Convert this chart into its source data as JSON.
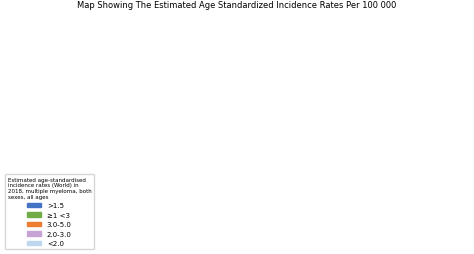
{
  "title": "Map Showing The Estimated Age Standardized Incidence Rates Per 100 000",
  "legend_title": "Estimated age-standardised\nincidence rates (World) in\n2018, multiple myeloma, both\nsexes, all ages",
  "legend_entries": [
    {
      "label": ">1.5",
      "color": "#4472C4"
    },
    {
      "label": "≥1 <3",
      "color": "#70AD47"
    },
    {
      "label": "3.0-5.0",
      "color": "#ED7D31"
    },
    {
      "label": "2.0-3.0",
      "color": "#C5A3D4"
    },
    {
      "label": "<2.0",
      "color": "#BDD7EE"
    }
  ],
  "background_color": "#FFFFFF",
  "ocean_color": "#FFFFFF",
  "default_country_color": "#C5DCE8",
  "border_color": "#AAAAAA",
  "border_width": 0.3,
  "country_colors": {
    "United States of America": "#70AD47",
    "Canada": "#70AD47",
    "Greenland": "#C5DCE8",
    "Mexico": "#C5DCE8",
    "Guatemala": "#C5DCE8",
    "Belize": "#C5DCE8",
    "Honduras": "#C5DCE8",
    "El Salvador": "#C5DCE8",
    "Nicaragua": "#C5DCE8",
    "Costa Rica": "#C5DCE8",
    "Panama": "#C5DCE8",
    "Cuba": "#C5DCE8",
    "Jamaica": "#C5DCE8",
    "Haiti": "#C5DCE8",
    "Dominican Republic": "#C5DCE8",
    "Puerto Rico": "#C5DCE8",
    "Trinidad and Tobago": "#C5DCE8",
    "Venezuela": "#C5DCE8",
    "Colombia": "#C5DCE8",
    "Ecuador": "#C5DCE8",
    "Peru": "#C5DCE8",
    "Bolivia": "#C5DCE8",
    "Brazil": "#C5A3D4",
    "Paraguay": "#C5DCE8",
    "Uruguay": "#C5DCE8",
    "Argentina": "#C5A3D4",
    "Chile": "#C5A3D4",
    "Iceland": "#C5DCE8",
    "Norway": "#ED7D31",
    "Sweden": "#ED7D31",
    "Finland": "#ED7D31",
    "Denmark": "#ED7D31",
    "Estonia": "#C5A3D4",
    "Latvia": "#C5A3D4",
    "Lithuania": "#C5A3D4",
    "United Kingdom": "#ED7D31",
    "Ireland": "#ED7D31",
    "Netherlands": "#ED7D31",
    "Belgium": "#ED7D31",
    "Luxembourg": "#ED7D31",
    "France": "#ED7D31",
    "Germany": "#ED7D31",
    "Switzerland": "#ED7D31",
    "Austria": "#ED7D31",
    "Poland": "#C5A3D4",
    "Czech Republic": "#ED7D31",
    "Slovakia": "#C5A3D4",
    "Hungary": "#C5A3D4",
    "Romania": "#C5A3D4",
    "Bulgaria": "#C5A3D4",
    "Serbia": "#C5A3D4",
    "Croatia": "#C5A3D4",
    "Slovenia": "#ED7D31",
    "Bosnia and Herzegovina": "#C5A3D4",
    "Montenegro": "#C5A3D4",
    "Albania": "#C5A3D4",
    "North Macedonia": "#C5A3D4",
    "Greece": "#C5A3D4",
    "Italy": "#ED7D31",
    "Spain": "#ED7D31",
    "Portugal": "#ED7D31",
    "Malta": "#C5A3D4",
    "Cyprus": "#C5A3D4",
    "Turkey": "#C5A3D4",
    "Georgia": "#C5DCE8",
    "Armenia": "#C5DCE8",
    "Azerbaijan": "#C5DCE8",
    "Russia": "#C5DCE8",
    "Belarus": "#C5DCE8",
    "Ukraine": "#C5DCE8",
    "Moldova": "#C5DCE8",
    "Kazakhstan": "#C5DCE8",
    "Uzbekistan": "#C5DCE8",
    "Turkmenistan": "#C5DCE8",
    "Kyrgyzstan": "#C5DCE8",
    "Tajikistan": "#C5DCE8",
    "Mongolia": "#C5DCE8",
    "China": "#C5DCE8",
    "Japan": "#C5DCE8",
    "South Korea": "#C5DCE8",
    "North Korea": "#C5DCE8",
    "Taiwan": "#C5DCE8",
    "Afghanistan": "#C5DCE8",
    "Pakistan": "#C5DCE8",
    "India": "#C5DCE8",
    "Nepal": "#C5DCE8",
    "Bhutan": "#C5DCE8",
    "Bangladesh": "#C5DCE8",
    "Sri Lanka": "#C5DCE8",
    "Myanmar": "#C5DCE8",
    "Thailand": "#C5DCE8",
    "Laos": "#C5DCE8",
    "Vietnam": "#C5DCE8",
    "Cambodia": "#C5DCE8",
    "Malaysia": "#C5DCE8",
    "Indonesia": "#C5DCE8",
    "Philippines": "#C5DCE8",
    "Papua New Guinea": "#C5DCE8",
    "Australia": "#4472C4",
    "New Zealand": "#4472C4",
    "Solomon Islands": "#C5DCE8",
    "Fiji": "#C5DCE8",
    "Iran": "#C5A3D4",
    "Iraq": "#C5A3D4",
    "Syria": "#C5DCE8",
    "Lebanon": "#C5DCE8",
    "Israel": "#C5A3D4",
    "Jordan": "#C5DCE8",
    "Saudi Arabia": "#C5DCE8",
    "Yemen": "#C5DCE8",
    "Oman": "#C5DCE8",
    "United Arab Emirates": "#C5DCE8",
    "Qatar": "#C5DCE8",
    "Bahrain": "#C5DCE8",
    "Kuwait": "#C5A3D4",
    "Egypt": "#C5DCE8",
    "Libya": "#C5DCE8",
    "Tunisia": "#C5DCE8",
    "Algeria": "#C5DCE8",
    "Morocco": "#C5DCE8",
    "Western Sahara": "#C5DCE8",
    "Mauritania": "#C5DCE8",
    "Mali": "#C5DCE8",
    "Niger": "#C5DCE8",
    "Chad": "#C5DCE8",
    "Sudan": "#C5DCE8",
    "Ethiopia": "#C5DCE8",
    "Eritrea": "#C5DCE8",
    "Djibouti": "#C5DCE8",
    "Somalia": "#C5DCE8",
    "Kenya": "#C5DCE8",
    "Uganda": "#C5DCE8",
    "Rwanda": "#C5DCE8",
    "Burundi": "#C5DCE8",
    "Tanzania": "#C5DCE8",
    "Mozambique": "#C5DCE8",
    "Malawi": "#C5DCE8",
    "Zambia": "#C5DCE8",
    "Zimbabwe": "#C5A3D4",
    "South Africa": "#C5A3D4",
    "Botswana": "#C5DCE8",
    "Namibia": "#C5DCE8",
    "Angola": "#C5DCE8",
    "Democratic Republic of the Congo": "#C5DCE8",
    "Republic of the Congo": "#C5DCE8",
    "Central African Republic": "#C5DCE8",
    "Cameroon": "#C5DCE8",
    "Nigeria": "#C5DCE8",
    "Benin": "#C5DCE8",
    "Togo": "#C5DCE8",
    "Ghana": "#C5DCE8",
    "Cote d'Ivoire": "#C5DCE8",
    "Burkina Faso": "#C5DCE8",
    "Senegal": "#C5DCE8",
    "Guinea": "#C5DCE8",
    "Sierra Leone": "#C5DCE8",
    "Liberia": "#C5DCE8",
    "Gabon": "#C5DCE8",
    "Equatorial Guinea": "#C5DCE8",
    "Sao Tome and Principe": "#C5DCE8",
    "Madagascar": "#C5DCE8",
    "Lesotho": "#C5DCE8",
    "Swaziland": "#C5DCE8",
    "eSwatini": "#C5DCE8",
    "Faroe Islands": "#ED7D31"
  },
  "figsize": [
    4.74,
    2.55
  ],
  "dpi": 100
}
